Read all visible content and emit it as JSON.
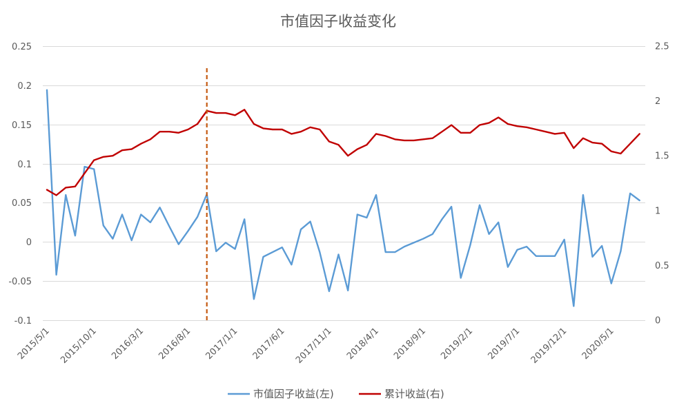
{
  "chart_data": {
    "type": "line",
    "title": "市值因子收益变化",
    "x": [
      "2015/5/1",
      "2015/6/1",
      "2015/7/1",
      "2015/8/1",
      "2015/9/1",
      "2015/10/1",
      "2015/11/1",
      "2015/12/1",
      "2016/1/1",
      "2016/2/1",
      "2016/3/1",
      "2016/4/1",
      "2016/5/1",
      "2016/6/1",
      "2016/7/1",
      "2016/8/1",
      "2016/9/1",
      "2016/10/1",
      "2016/11/1",
      "2016/12/1",
      "2017/1/1",
      "2017/2/1",
      "2017/3/1",
      "2017/4/1",
      "2017/5/1",
      "2017/6/1",
      "2017/7/1",
      "2017/8/1",
      "2017/9/1",
      "2017/10/1",
      "2017/11/1",
      "2017/12/1",
      "2018/1/1",
      "2018/2/1",
      "2018/3/1",
      "2018/4/1",
      "2018/5/1",
      "2018/6/1",
      "2018/7/1",
      "2018/8/1",
      "2018/9/1",
      "2018/10/1",
      "2018/11/1",
      "2018/12/1",
      "2019/1/1",
      "2019/2/1",
      "2019/3/1",
      "2019/4/1",
      "2019/5/1",
      "2019/6/1",
      "2019/7/1",
      "2019/8/1",
      "2019/9/1",
      "2019/10/1",
      "2019/11/1",
      "2019/12/1",
      "2020/1/1",
      "2020/2/1",
      "2020/3/1",
      "2020/4/1",
      "2020/5/1",
      "2020/6/1",
      "2020/7/1",
      "2020/8/1"
    ],
    "x_tick_labels": [
      "2015/5/1",
      "2015/10/1",
      "2016/3/1",
      "2016/8/1",
      "2017/1/1",
      "2017/6/1",
      "2017/11/1",
      "2018/4/1",
      "2018/9/1",
      "2019/2/1",
      "2019/7/1",
      "2019/12/1",
      "2020/5/1"
    ],
    "y_left": {
      "lim": [
        -0.1,
        0.25
      ],
      "ticks": [
        "0.25",
        "0.2",
        "0.15",
        "0.1",
        "0.05",
        "0",
        "-0.05",
        "-0.1"
      ]
    },
    "y_right": {
      "lim": [
        0,
        2.5
      ],
      "ticks": [
        "2.5",
        "2",
        "1.5",
        "1",
        "0.5",
        "0"
      ]
    },
    "series": [
      {
        "name": "市值因子收益(左)",
        "axis": "left",
        "color": "#5B9BD5",
        "values": [
          0.194,
          -0.042,
          0.06,
          0.008,
          0.096,
          0.093,
          0.021,
          0.004,
          0.035,
          0.002,
          0.035,
          0.025,
          0.044,
          0.02,
          -0.003,
          0.014,
          0.032,
          0.061,
          -0.012,
          -0.001,
          -0.009,
          0.029,
          -0.073,
          -0.019,
          -0.013,
          -0.007,
          -0.029,
          0.016,
          0.026,
          -0.013,
          -0.063,
          -0.016,
          -0.062,
          0.035,
          0.031,
          0.06,
          -0.013,
          -0.013,
          -0.006,
          -0.001,
          0.004,
          0.01,
          0.029,
          0.045,
          -0.046,
          -0.004,
          0.047,
          0.01,
          0.025,
          -0.032,
          -0.01,
          -0.006,
          -0.018,
          -0.018,
          -0.018,
          0.003,
          -0.082,
          0.06,
          -0.019,
          -0.005,
          -0.053,
          -0.012,
          0.062,
          0.053
        ]
      },
      {
        "name": "累计收益(右)",
        "axis": "right",
        "color": "#C00000",
        "values": [
          1.19,
          1.14,
          1.21,
          1.22,
          1.34,
          1.46,
          1.49,
          1.5,
          1.55,
          1.56,
          1.61,
          1.65,
          1.72,
          1.72,
          1.71,
          1.74,
          1.79,
          1.91,
          1.89,
          1.89,
          1.87,
          1.92,
          1.79,
          1.75,
          1.74,
          1.74,
          1.7,
          1.72,
          1.76,
          1.74,
          1.63,
          1.6,
          1.5,
          1.56,
          1.6,
          1.7,
          1.68,
          1.65,
          1.64,
          1.64,
          1.65,
          1.66,
          1.72,
          1.78,
          1.71,
          1.71,
          1.78,
          1.8,
          1.85,
          1.79,
          1.77,
          1.76,
          1.74,
          1.72,
          1.7,
          1.71,
          1.57,
          1.66,
          1.62,
          1.61,
          1.54,
          1.52,
          1.61,
          1.7
        ]
      }
    ],
    "annotations": [
      {
        "type": "vertical-line",
        "x": "2016/10/1",
        "style": "dashed",
        "color": "#C55A11"
      }
    ],
    "grid": "horizontal",
    "legend": "bottom",
    "colors": {
      "text": "#595959",
      "grid": "#D9D9D9",
      "background": "#FFFFFF"
    }
  }
}
